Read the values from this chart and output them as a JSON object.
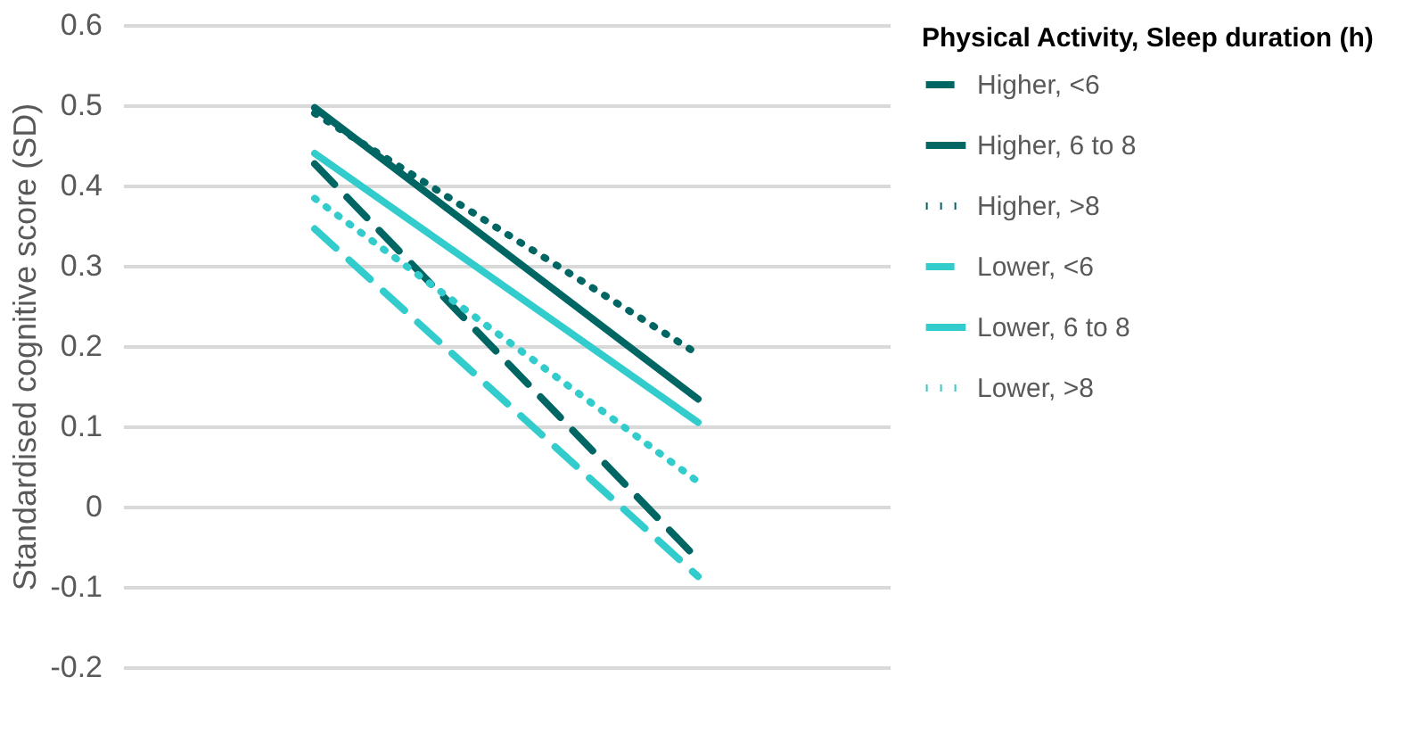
{
  "chart_data": {
    "type": "line",
    "ylabel": "Standardised cognitive score (SD)",
    "legend_title": "Physical Activity, Sleep duration (h)",
    "categories": [
      null,
      null
    ],
    "series": [
      {
        "name": "Higher, <6",
        "color": "#006663",
        "line_style": "dashed",
        "values": [
          0.427,
          -0.066
        ]
      },
      {
        "name": "Higher, 6 to 8",
        "color": "#006663",
        "line_style": "solid",
        "values": [
          0.497,
          0.134
        ]
      },
      {
        "name": "Higher, >8",
        "color": "#006663",
        "line_style": "dotted",
        "values": [
          0.49,
          0.19
        ]
      },
      {
        "name": "Lower, <6",
        "color": "#33cccc",
        "line_style": "dashed",
        "values": [
          0.346,
          -0.087
        ]
      },
      {
        "name": "Lower, 6 to 8",
        "color": "#33cccc",
        "line_style": "solid",
        "values": [
          0.44,
          0.105
        ]
      },
      {
        "name": "Lower, >8",
        "color": "#33cccc",
        "line_style": "dotted",
        "values": [
          0.384,
          0.031
        ]
      }
    ],
    "ylim": [
      -0.2,
      0.6
    ],
    "yticks": [
      -0.2,
      -0.1,
      0,
      0.1,
      0.2,
      0.3,
      0.4,
      0.5,
      0.6
    ],
    "grid": "y",
    "legend": "right",
    "tick_labels": "y"
  }
}
